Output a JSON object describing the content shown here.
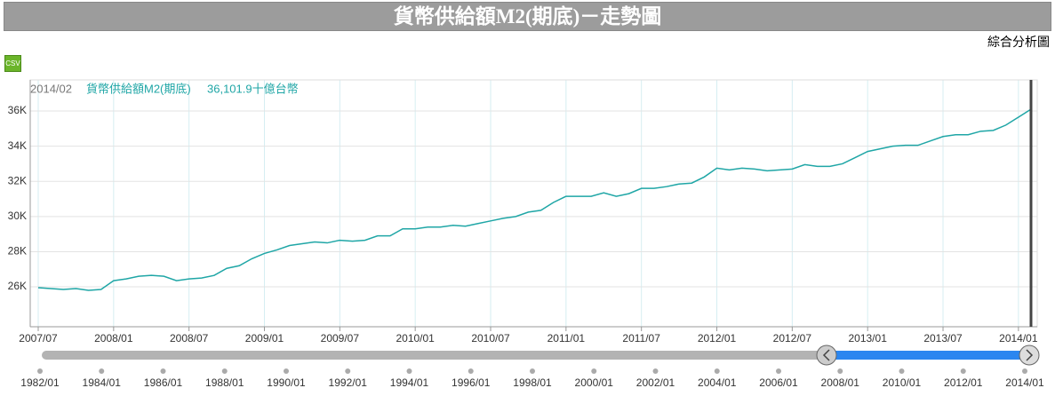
{
  "header": {
    "title": "貨幣供給額M2(期底)－走勢圖",
    "link": "綜合分析圖",
    "csv": "CSV"
  },
  "chart_data": {
    "type": "line",
    "x": [
      "2007/07",
      "2007/08",
      "2007/09",
      "2007/10",
      "2007/11",
      "2007/12",
      "2008/01",
      "2008/02",
      "2008/03",
      "2008/04",
      "2008/05",
      "2008/06",
      "2008/07",
      "2008/08",
      "2008/09",
      "2008/10",
      "2008/11",
      "2008/12",
      "2009/01",
      "2009/02",
      "2009/03",
      "2009/04",
      "2009/05",
      "2009/06",
      "2009/07",
      "2009/08",
      "2009/09",
      "2009/10",
      "2009/11",
      "2009/12",
      "2010/01",
      "2010/02",
      "2010/03",
      "2010/04",
      "2010/05",
      "2010/06",
      "2010/07",
      "2010/08",
      "2010/09",
      "2010/10",
      "2010/11",
      "2010/12",
      "2011/01",
      "2011/02",
      "2011/03",
      "2011/04",
      "2011/05",
      "2011/06",
      "2011/07",
      "2011/08",
      "2011/09",
      "2011/10",
      "2011/11",
      "2011/12",
      "2012/01",
      "2012/02",
      "2012/03",
      "2012/04",
      "2012/05",
      "2012/06",
      "2012/07",
      "2012/08",
      "2012/09",
      "2012/10",
      "2012/11",
      "2012/12",
      "2013/01",
      "2013/02",
      "2013/03",
      "2013/04",
      "2013/05",
      "2013/06",
      "2013/07",
      "2013/08",
      "2013/09",
      "2013/10",
      "2013/11",
      "2013/12",
      "2014/01",
      "2014/02"
    ],
    "series": [
      {
        "name": "貨幣供給額M2(期底)",
        "color": "#1fa6a6",
        "values": [
          25950,
          25900,
          25850,
          25900,
          25800,
          25850,
          26350,
          26450,
          26600,
          26650,
          26600,
          26350,
          26450,
          26500,
          26650,
          27050,
          27200,
          27600,
          27900,
          28100,
          28350,
          28450,
          28550,
          28500,
          28650,
          28600,
          28650,
          28900,
          28900,
          29300,
          29300,
          29400,
          29400,
          29500,
          29450,
          29600,
          29750,
          29900,
          30000,
          30250,
          30350,
          30800,
          31150,
          31150,
          31150,
          31350,
          31150,
          31300,
          31600,
          31600,
          31700,
          31850,
          31900,
          32250,
          32750,
          32650,
          32750,
          32700,
          32600,
          32650,
          32700,
          32950,
          32850,
          32850,
          33000,
          33350,
          33700,
          33850,
          34000,
          34050,
          34050,
          34300,
          34550,
          34650,
          34650,
          34850,
          34900,
          35200,
          35650,
          36101.9
        ]
      }
    ],
    "ylim": [
      23730,
      37770
    ],
    "yticks": [
      {
        "value": 26000,
        "label": "26K"
      },
      {
        "value": 28000,
        "label": "28K"
      },
      {
        "value": 30000,
        "label": "30K"
      },
      {
        "value": 32000,
        "label": "32K"
      },
      {
        "value": 34000,
        "label": "34K"
      },
      {
        "value": 36000,
        "label": "36K"
      }
    ],
    "xticks": [
      "2007/07",
      "2008/01",
      "2008/07",
      "2009/01",
      "2009/07",
      "2010/01",
      "2010/07",
      "2011/01",
      "2011/07",
      "2012/01",
      "2012/07",
      "2013/01",
      "2013/07",
      "2014/01"
    ],
    "grid": true,
    "tooltip": {
      "x": "2014/02",
      "value_label": "36,101.9十億台幣"
    },
    "navigator": {
      "ticks": [
        "1982/01",
        "1984/01",
        "1986/01",
        "1988/01",
        "1990/01",
        "1992/01",
        "1994/01",
        "1996/01",
        "1998/01",
        "2000/01",
        "2002/01",
        "2004/01",
        "2006/01",
        "2008/01",
        "2010/01",
        "2012/01",
        "2014/01"
      ]
    }
  }
}
